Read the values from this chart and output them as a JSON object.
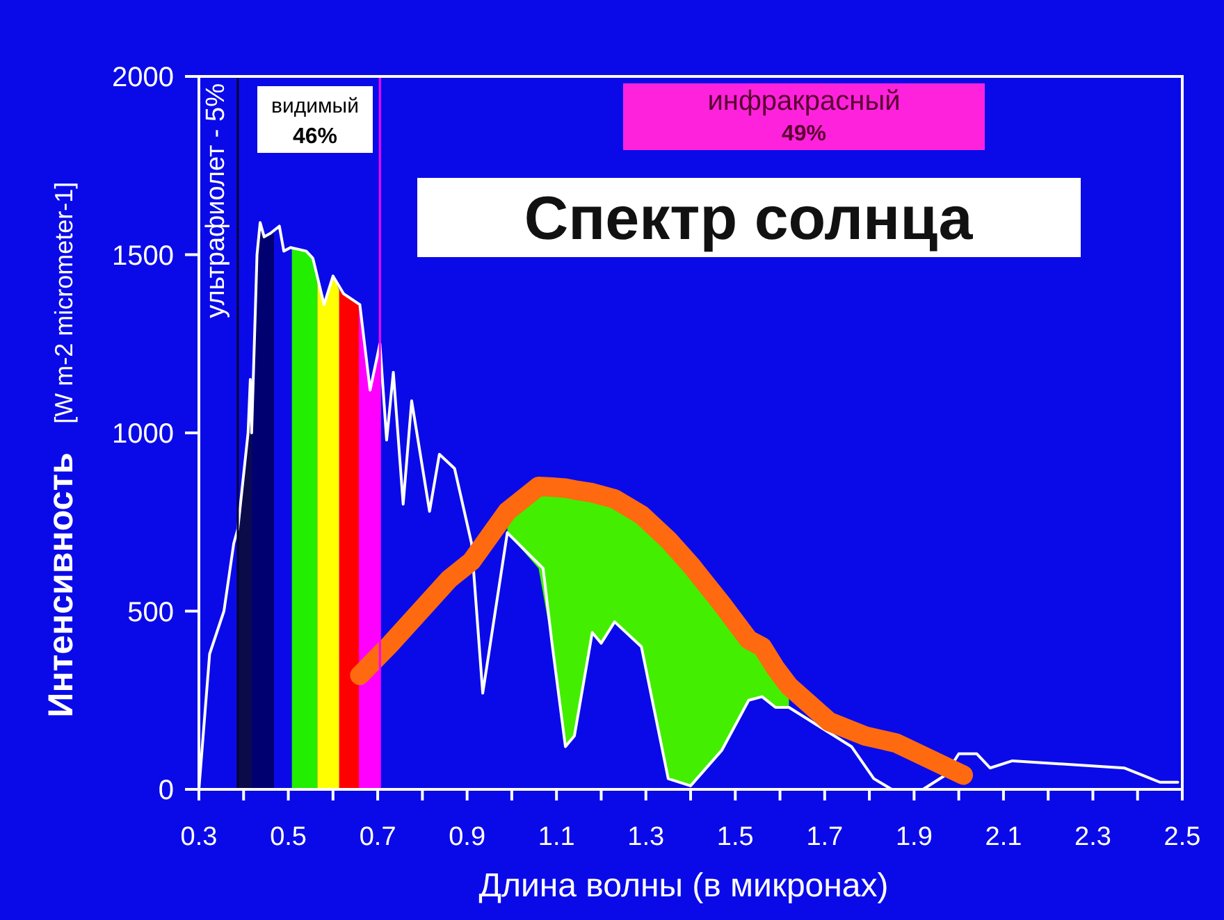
{
  "chart_data": {
    "type": "line",
    "title": "Спектр солнца",
    "xlabel": "Длина волны (в микронах)",
    "ylabel": "Интенсивность   [W m-2 micrometer-1]",
    "xlim": [
      0.3,
      2.5
    ],
    "ylim": [
      0,
      2000
    ],
    "xticks": [
      0.3,
      {
        "value": 0.4,
        "label": null
      },
      0.5,
      {
        "value": 0.6,
        "label": null
      },
      0.7,
      {
        "value": 0.8,
        "label": null
      },
      0.9,
      {
        "value": 1.0,
        "label": null
      },
      1.1,
      {
        "value": 1.2,
        "label": null
      },
      1.3,
      {
        "value": 1.4,
        "label": null
      },
      1.5,
      {
        "value": 1.6,
        "label": null
      },
      1.7,
      {
        "value": 1.8,
        "label": null
      },
      1.9,
      {
        "value": 2.0,
        "label": null
      },
      2.1,
      {
        "value": 2.2,
        "label": null
      },
      2.3,
      {
        "value": 2.4,
        "label": null
      },
      2.5
    ],
    "yticks": [
      0,
      500,
      1000,
      1500,
      2000
    ],
    "grid": false,
    "series": [
      {
        "type": "area",
        "color": "#0b0b4a",
        "x": [
          0.387,
          0.41,
          0.415,
          0.418
        ],
        "values": [
          730,
          1000,
          1150,
          1000
        ]
      },
      {
        "type": "area",
        "color": "#000070",
        "x": [
          0.418,
          0.43,
          0.437,
          0.446,
          0.46,
          0.468
        ],
        "values": [
          1000,
          1500,
          1590,
          1550,
          1560,
          1570
        ]
      },
      {
        "type": "area",
        "color": "#22ee00",
        "x": [
          0.508,
          0.54,
          0.555,
          0.565
        ],
        "values": [
          1520,
          1510,
          1490,
          1440
        ]
      },
      {
        "type": "area",
        "color": "#ffff00",
        "x": [
          0.565,
          0.58,
          0.6,
          0.614
        ],
        "values": [
          1440,
          1360,
          1440,
          1400
        ]
      },
      {
        "type": "area",
        "color": "#ff0000",
        "x": [
          0.614,
          0.624,
          0.658
        ],
        "values": [
          1400,
          1390,
          1360
        ]
      },
      {
        "type": "area",
        "color": "#ff00ff",
        "x": [
          0.658,
          0.683,
          0.705
        ],
        "values": [
          1360,
          1120,
          1250
        ]
      },
      {
        "type": "line",
        "color": "#ffffff",
        "x": [
          0.3,
          0.324,
          0.356,
          0.378,
          0.387,
          0.41,
          0.415,
          0.418,
          0.43,
          0.437,
          0.446,
          0.46,
          0.48,
          0.49,
          0.505,
          0.54,
          0.555,
          0.58,
          0.6,
          0.624,
          0.66,
          0.683,
          0.705,
          0.72,
          0.735,
          0.757,
          0.776,
          0.816,
          0.838,
          0.872,
          0.91,
          0.935,
          0.99,
          1.07,
          1.09,
          1.12,
          1.14,
          1.18,
          1.2,
          1.23,
          1.29,
          1.35,
          1.4,
          1.47,
          1.53,
          1.56,
          1.59,
          1.62,
          1.76,
          1.81,
          1.85,
          1.92,
          1.97,
          2.0,
          2.04,
          2.07,
          2.12,
          2.37,
          2.41,
          2.45,
          2.49
        ],
        "values": [
          0,
          380,
          500,
          690,
          730,
          1000,
          1150,
          1000,
          1500,
          1590,
          1550,
          1560,
          1580,
          1510,
          1520,
          1510,
          1490,
          1360,
          1440,
          1390,
          1360,
          1120,
          1250,
          980,
          1170,
          800,
          1090,
          780,
          940,
          900,
          690,
          270,
          720,
          620,
          410,
          120,
          150,
          440,
          410,
          470,
          400,
          30,
          10,
          110,
          250,
          260,
          230,
          230,
          120,
          30,
          0,
          0,
          40,
          100,
          100,
          60,
          80,
          60,
          40,
          20,
          20
        ]
      },
      {
        "type": "line",
        "color": "#ff6a10",
        "x": [
          0.66,
          0.73,
          0.86,
          0.91,
          0.99,
          1.06,
          1.09,
          1.12,
          1.14,
          1.18,
          1.2,
          1.23,
          1.29,
          1.35,
          1.4,
          1.47,
          1.53,
          1.56,
          1.59,
          1.62,
          1.71,
          1.79,
          1.86,
          2.01
        ],
        "values": [
          320,
          410,
          590,
          640,
          780,
          850,
          848,
          845,
          840,
          832,
          825,
          815,
          770,
          700,
          630,
          520,
          420,
          400,
          340,
          290,
          190,
          150,
          130,
          40
        ],
        "lower": [
          null,
          null,
          null,
          null,
          720,
          620,
          410,
          120,
          150,
          440,
          410,
          470,
          400,
          30,
          10,
          110,
          250,
          260,
          230,
          230,
          null,
          null,
          null,
          null
        ],
        "upper": [
          null,
          null,
          null,
          null,
          780,
          850,
          848,
          845,
          840,
          832,
          825,
          815,
          770,
          700,
          630,
          520,
          420,
          400,
          340,
          290,
          null,
          null,
          null,
          null
        ]
      }
    ],
    "ref_lines": [
      {
        "axis": "x",
        "value": 0.387,
        "color": "#000033",
        "label": "ультрафиолет - 5%"
      },
      {
        "axis": "x",
        "value": 0.705,
        "color": "#ff00ff"
      }
    ],
    "annotations": [
      "видимый\n46%",
      "инфракрасный\n49%"
    ]
  }
}
